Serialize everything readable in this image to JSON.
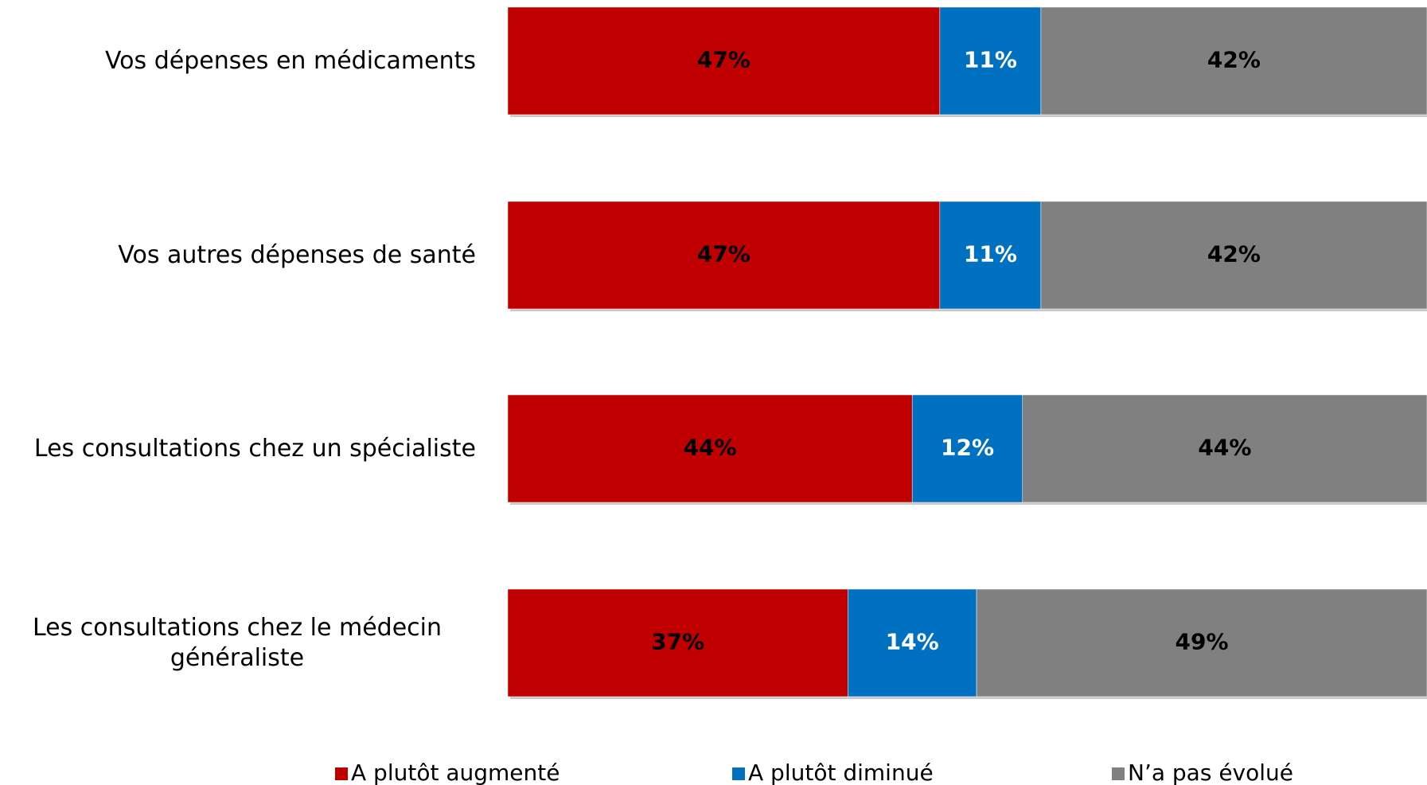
{
  "chart_data": {
    "type": "stacked-barh",
    "categories": [
      "Vos dépenses en médicaments",
      "Vos autres dépenses de santé",
      "Les consultations chez un spécialiste",
      "Les consultations chez le médecin généraliste"
    ],
    "series": [
      {
        "name": "A plutôt augmenté",
        "color": "#c00000",
        "values": [
          47,
          47,
          44,
          37
        ],
        "value_labels": [
          "47%",
          "47%",
          "44%",
          "37%"
        ]
      },
      {
        "name": "A plutôt diminué",
        "color": "#0070c0",
        "values": [
          11,
          11,
          12,
          14
        ],
        "value_labels": [
          "11%",
          "11%",
          "12%",
          "14%"
        ]
      },
      {
        "name": "N’a pas évolué",
        "color": "#808080",
        "values": [
          42,
          42,
          44,
          49
        ],
        "value_labels": [
          "42%",
          "42%",
          "44%",
          "49%"
        ]
      }
    ],
    "xlim": [
      0,
      100
    ]
  }
}
